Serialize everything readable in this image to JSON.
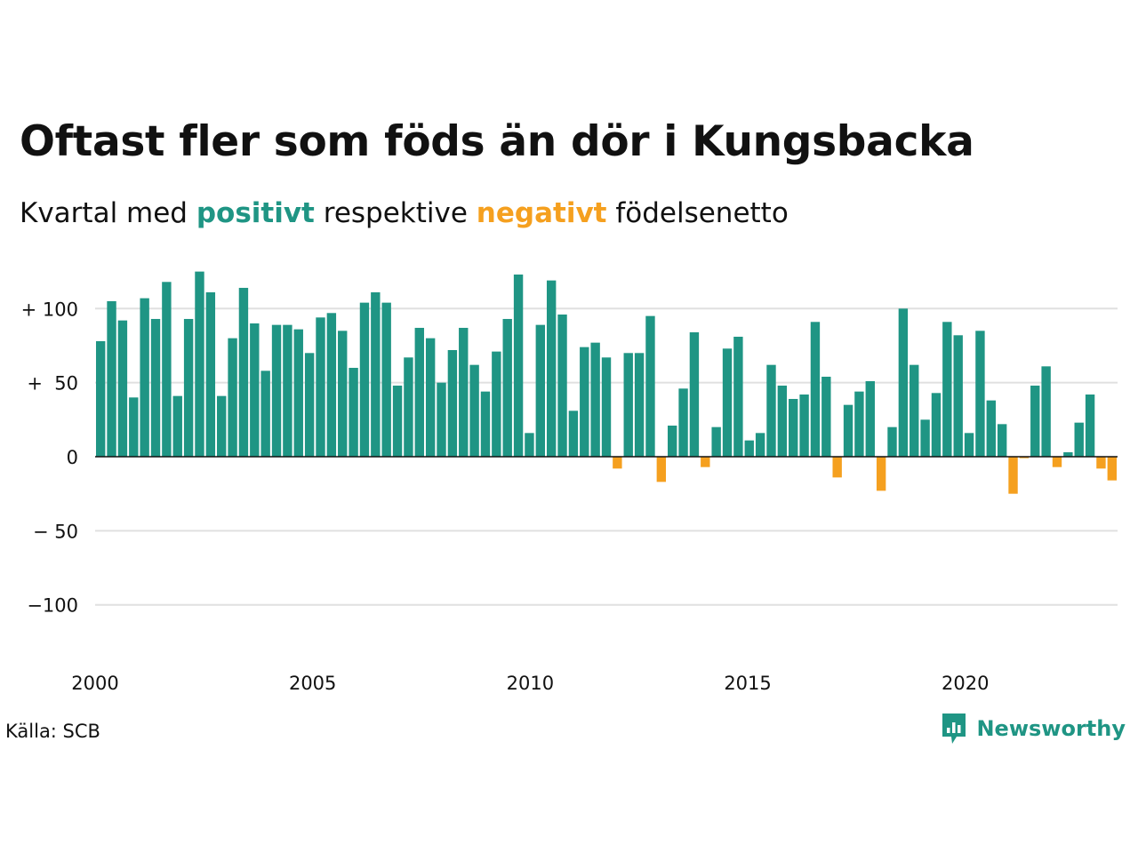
{
  "title": "Oftast fler som föds än dör i Kungsbacka",
  "subtitle": {
    "prefix": "Kvartal med",
    "positive": "positivt",
    "middle": "respektive",
    "negative": "negativt",
    "suffix": "födelsenetto"
  },
  "source": "Källa: SCB",
  "brand": "Newsworthy",
  "colors": {
    "positive": "#1f9584",
    "negative": "#f5a01f",
    "grid": "#e0e0e0",
    "text": "#111111"
  },
  "chart_data": {
    "type": "bar",
    "x_tick_labels": [
      "2000",
      "2005",
      "2010",
      "2015",
      "2020"
    ],
    "y_tick_labels": [
      "+ 100",
      "+  50",
      "0",
      "− 50",
      "−100"
    ],
    "y_ticks": [
      100,
      50,
      0,
      -50,
      -100
    ],
    "ylim": [
      -135,
      135
    ],
    "x_start": 2000,
    "x_end": 2023.5,
    "grid": true,
    "values": [
      78,
      105,
      92,
      40,
      107,
      93,
      118,
      41,
      93,
      125,
      111,
      41,
      80,
      114,
      90,
      58,
      89,
      89,
      86,
      70,
      94,
      97,
      85,
      60,
      104,
      111,
      104,
      48,
      67,
      87,
      80,
      50,
      72,
      87,
      62,
      44,
      71,
      93,
      123,
      16,
      89,
      119,
      96,
      31,
      74,
      77,
      67,
      -8,
      70,
      70,
      95,
      -17,
      21,
      46,
      84,
      -7,
      20,
      73,
      81,
      11,
      16,
      62,
      48,
      39,
      42,
      91,
      54,
      -14,
      35,
      44,
      51,
      -23,
      20,
      100,
      62,
      25,
      43,
      91,
      82,
      16,
      85,
      38,
      22,
      -25,
      -1,
      48,
      61,
      -7,
      3,
      23,
      42,
      -8,
      -16
    ]
  }
}
